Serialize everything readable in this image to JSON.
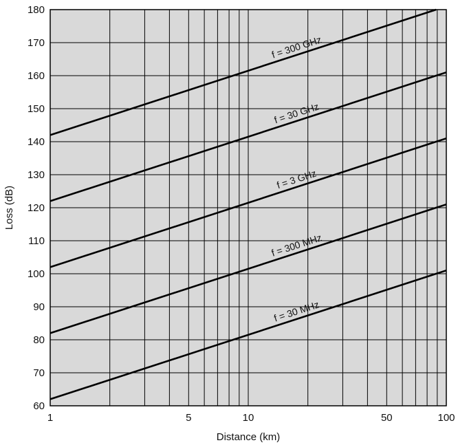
{
  "chart_data": {
    "type": "line",
    "x_scale": "log",
    "y_scale": "linear",
    "xlabel": "Distance (km)",
    "ylabel": "Loss (dB)",
    "xlim": [
      1,
      100
    ],
    "ylim": [
      60,
      180
    ],
    "x_ticks": [
      1,
      5,
      10,
      50,
      100
    ],
    "x_tick_labels": [
      "1",
      "5",
      "10",
      "50",
      "100"
    ],
    "y_ticks": [
      60,
      70,
      80,
      90,
      100,
      110,
      120,
      130,
      140,
      150,
      160,
      170,
      180
    ],
    "y_tick_labels": [
      "60",
      "70",
      "80",
      "90",
      "100",
      "110",
      "120",
      "130",
      "140",
      "150",
      "160",
      "170",
      "180"
    ],
    "grid": true,
    "background": "#d9d9d9",
    "line_color": "#000000",
    "series": [
      {
        "name": "f = 30 MHz",
        "x": [
          1,
          100
        ],
        "y": [
          62,
          101
        ]
      },
      {
        "name": "f = 300 MHz",
        "x": [
          1,
          100
        ],
        "y": [
          82,
          121
        ]
      },
      {
        "name": "f = 3 GHz",
        "x": [
          1,
          100
        ],
        "y": [
          102,
          141
        ]
      },
      {
        "name": "f = 30 GHz",
        "x": [
          1,
          100
        ],
        "y": [
          122,
          161
        ]
      },
      {
        "name": "f = 300 GHz",
        "x": [
          1,
          100
        ],
        "y": [
          142,
          181
        ]
      }
    ]
  }
}
